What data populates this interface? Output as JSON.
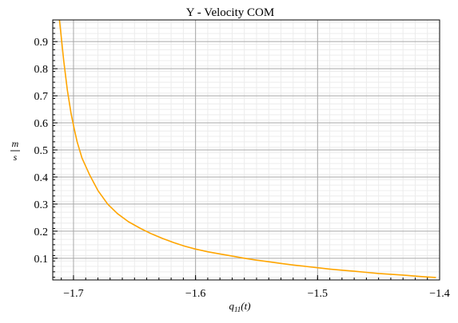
{
  "chart_data": {
    "type": "line",
    "title": "Y - Velocity COM",
    "xlabel": "q",
    "xlabel_sub": "11",
    "xlabel_arg": "(t)",
    "ylabel_num": "m",
    "ylabel_den": "s",
    "xlim": [
      -1.717,
      -1.4
    ],
    "ylim": [
      0.02,
      0.98
    ],
    "xticks": [
      -1.7,
      -1.6,
      -1.5,
      -1.4
    ],
    "xtick_labels": [
      "−1.7",
      "−1.6",
      "−1.5",
      "−1.4"
    ],
    "yticks": [
      0.1,
      0.2,
      0.3,
      0.4,
      0.5,
      0.6,
      0.7,
      0.8,
      0.9
    ],
    "ytick_labels": [
      "0.1",
      "0.2",
      "0.3",
      "0.4",
      "0.5",
      "0.6",
      "0.7",
      "0.8",
      "0.9"
    ],
    "grid": true,
    "color": "#ffa500",
    "series": [
      {
        "x": [
          -1.7115,
          -1.708,
          -1.705,
          -1.702,
          -1.6995,
          -1.697,
          -1.693,
          -1.687,
          -1.68,
          -1.672,
          -1.664,
          -1.655,
          -1.645,
          -1.636,
          -1.627,
          -1.618,
          -1.609,
          -1.6,
          -1.59,
          -1.58,
          -1.57,
          -1.56,
          -1.55,
          -1.54,
          -1.53,
          -1.52,
          -1.51,
          -1.5,
          -1.49,
          -1.48,
          -1.47,
          -1.46,
          -1.45,
          -1.44,
          -1.43,
          -1.42,
          -1.41,
          -1.403
        ],
        "y": [
          0.98,
          0.83,
          0.72,
          0.635,
          0.58,
          0.53,
          0.47,
          0.41,
          0.35,
          0.3,
          0.265,
          0.235,
          0.21,
          0.19,
          0.173,
          0.158,
          0.145,
          0.134,
          0.124,
          0.116,
          0.108,
          0.1,
          0.093,
          0.087,
          0.081,
          0.075,
          0.07,
          0.065,
          0.06,
          0.056,
          0.052,
          0.048,
          0.044,
          0.041,
          0.038,
          0.034,
          0.031,
          0.029
        ]
      }
    ]
  }
}
